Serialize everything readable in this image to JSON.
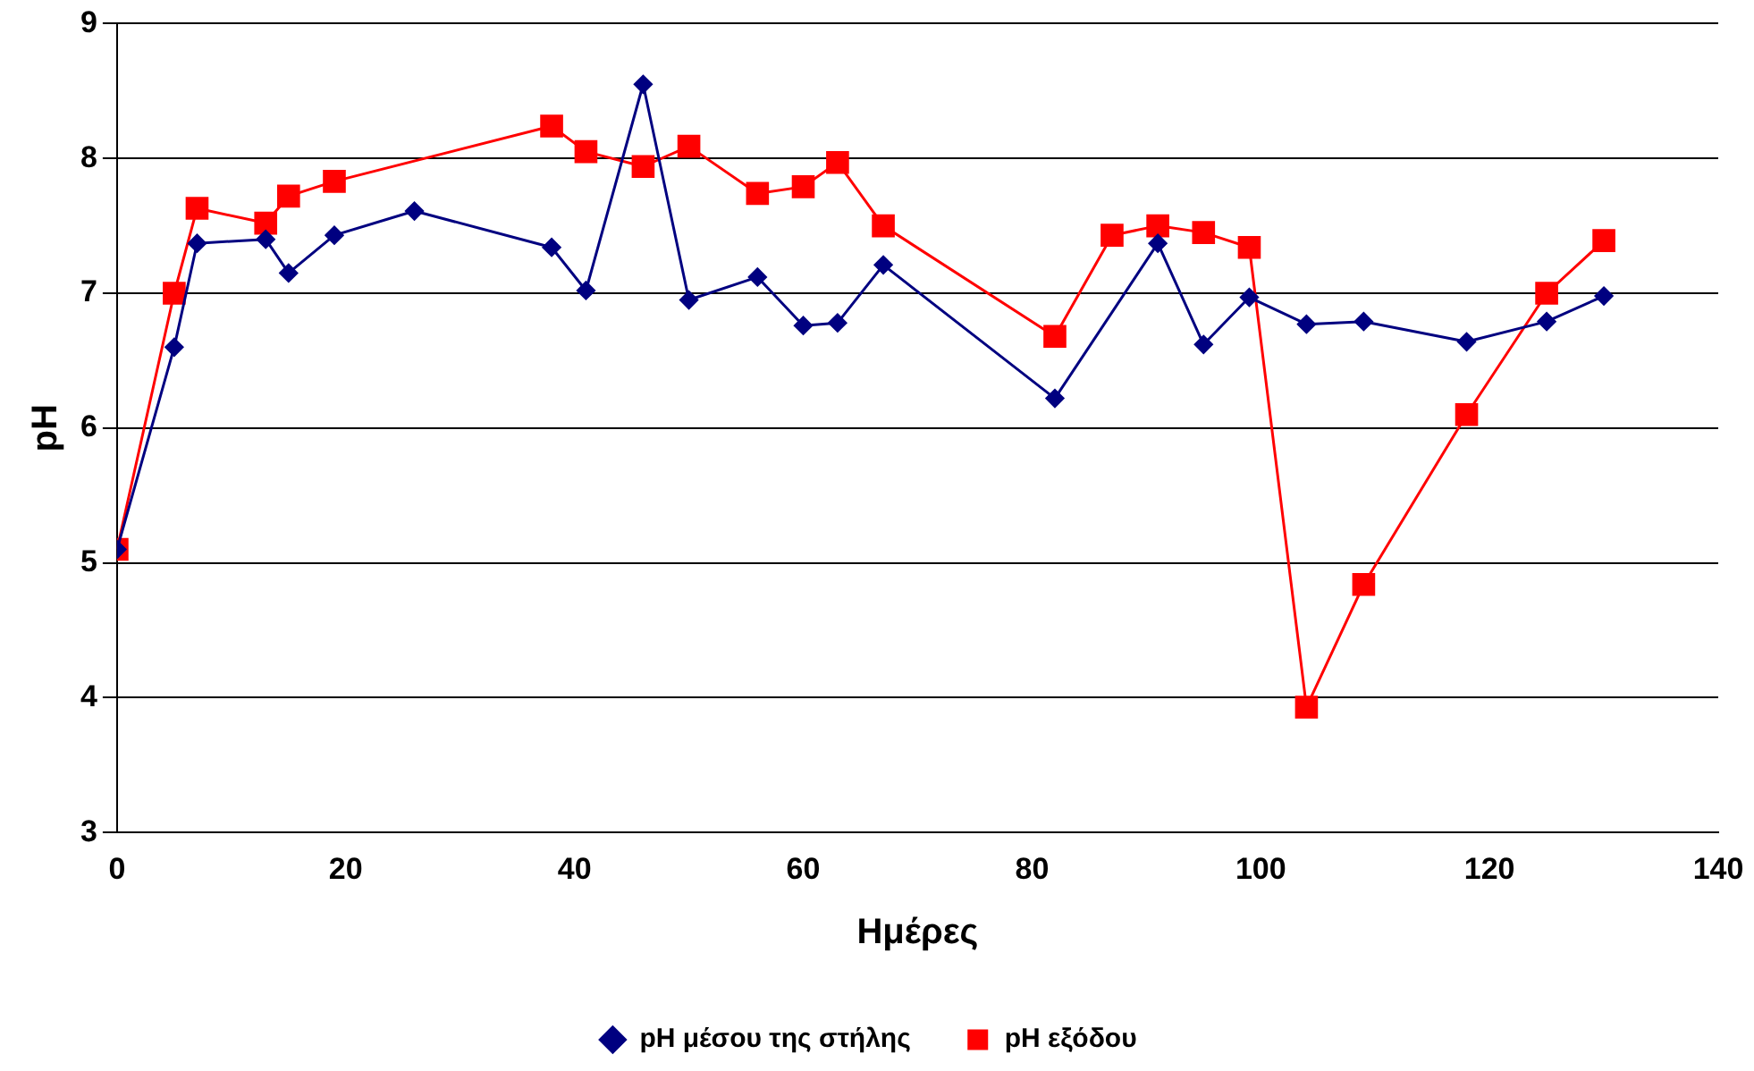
{
  "chart_data": {
    "type": "line",
    "xlabel": "Ημέρες",
    "ylabel": "pH",
    "xlim": [
      0,
      140
    ],
    "xticks": [
      0,
      20,
      40,
      60,
      80,
      100,
      120,
      140
    ],
    "ylim": [
      3,
      9
    ],
    "yticks": [
      3,
      4,
      5,
      6,
      7,
      8,
      9
    ],
    "grid": "y",
    "legend": "bottom",
    "series": [
      {
        "name": "pH μέσου της στήλης",
        "color": "#000080",
        "marker": "diamond",
        "x": [
          0,
          5,
          7,
          13,
          15,
          19,
          26,
          38,
          41,
          46,
          50,
          56,
          60,
          63,
          67,
          82,
          91,
          95,
          99,
          104,
          109,
          118,
          125,
          130
        ],
        "values": [
          5.1,
          6.6,
          7.37,
          7.4,
          7.15,
          7.43,
          7.61,
          7.34,
          7.02,
          8.55,
          6.95,
          7.12,
          6.76,
          6.78,
          7.21,
          6.22,
          7.37,
          6.62,
          6.97,
          6.77,
          6.79,
          6.64,
          6.79,
          6.98
        ]
      },
      {
        "name": "pH εξόδου",
        "color": "#ff0000",
        "marker": "square",
        "x": [
          0,
          5,
          7,
          13,
          15,
          19,
          38,
          41,
          46,
          50,
          56,
          60,
          63,
          67,
          82,
          87,
          91,
          95,
          99,
          104,
          109,
          118,
          125,
          130
        ],
        "values": [
          5.1,
          7.0,
          7.63,
          7.52,
          7.72,
          7.83,
          8.24,
          8.05,
          7.94,
          8.09,
          7.74,
          7.79,
          7.97,
          7.5,
          6.68,
          7.43,
          7.5,
          7.45,
          7.34,
          3.93,
          4.84,
          6.1,
          7.0,
          7.39
        ]
      }
    ]
  }
}
